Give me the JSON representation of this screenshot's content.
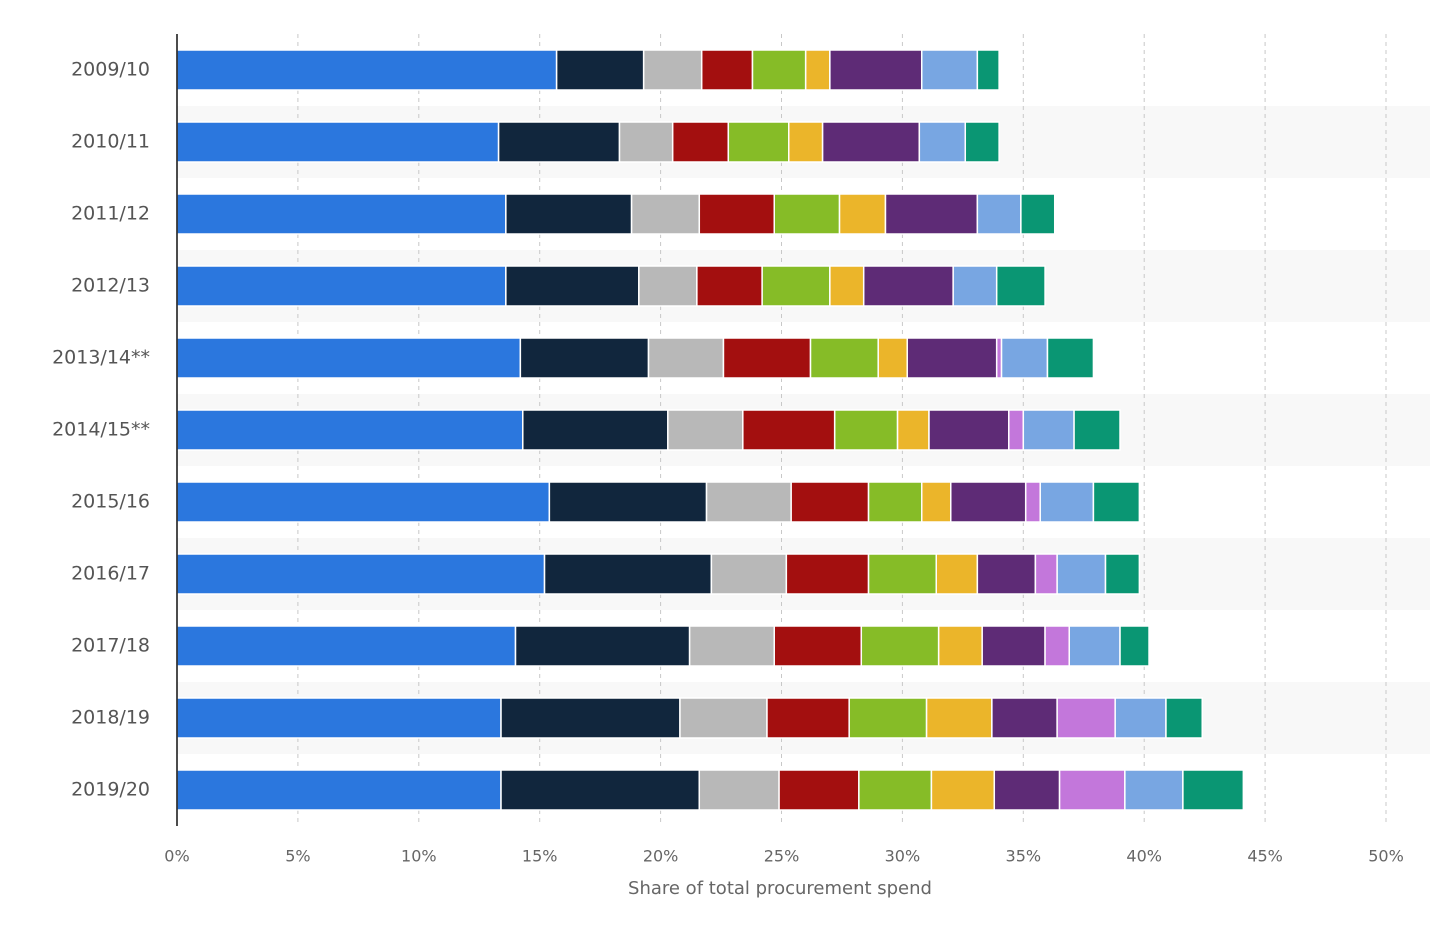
{
  "chart_data": {
    "type": "stacked-bar-horizontal",
    "x_label": "Share of total procurement spend",
    "categories": [
      "2009/10",
      "2010/11",
      "2011/12",
      "2012/13",
      "2013/14**",
      "2014/15**",
      "2015/16",
      "2016/17",
      "2017/18",
      "2018/19",
      "2019/20"
    ],
    "series": [
      {
        "color": "#2b77de",
        "values": [
          15.7,
          13.3,
          13.6,
          13.6,
          14.2,
          14.3,
          15.4,
          15.2,
          14.0,
          13.4,
          13.4
        ]
      },
      {
        "color": "#11263d",
        "values": [
          3.6,
          5.0,
          5.2,
          5.5,
          5.3,
          6.0,
          6.5,
          6.9,
          7.2,
          7.4,
          8.2
        ]
      },
      {
        "color": "#b8b8b8",
        "values": [
          2.4,
          2.2,
          2.8,
          2.4,
          3.1,
          3.1,
          3.5,
          3.1,
          3.5,
          3.6,
          3.3
        ]
      },
      {
        "color": "#a30f0f",
        "values": [
          2.1,
          2.3,
          3.1,
          2.7,
          3.6,
          3.8,
          3.2,
          3.4,
          3.6,
          3.4,
          3.3
        ]
      },
      {
        "color": "#86bc27",
        "values": [
          2.2,
          2.5,
          2.7,
          2.8,
          2.8,
          2.6,
          2.2,
          2.8,
          3.2,
          3.2,
          3.0
        ]
      },
      {
        "color": "#ebb52a",
        "values": [
          1.0,
          1.4,
          1.9,
          1.4,
          1.2,
          1.3,
          1.2,
          1.7,
          1.8,
          2.7,
          2.6
        ]
      },
      {
        "color": "#5e2b76",
        "values": [
          3.8,
          4.0,
          3.8,
          3.7,
          3.7,
          3.3,
          3.1,
          2.4,
          2.6,
          2.7,
          2.7
        ]
      },
      {
        "color": "#c377db",
        "values": [
          0,
          0,
          0,
          0,
          0.2,
          0.6,
          0.6,
          0.9,
          1.0,
          2.4,
          2.7
        ]
      },
      {
        "color": "#78a6e2",
        "values": [
          2.3,
          1.9,
          1.8,
          1.8,
          1.9,
          2.1,
          2.2,
          2.0,
          2.1,
          2.1,
          2.4
        ]
      },
      {
        "color": "#0a9673",
        "values": [
          0.9,
          1.4,
          1.4,
          2.0,
          1.9,
          1.9,
          1.9,
          1.4,
          1.2,
          1.5,
          2.5
        ]
      }
    ],
    "xlim": [
      0,
      50
    ],
    "xticks": [
      {
        "value": 0,
        "label": "0%"
      },
      {
        "value": 5,
        "label": "5%"
      },
      {
        "value": 10,
        "label": "10%"
      },
      {
        "value": 15,
        "label": "15%"
      },
      {
        "value": 20,
        "label": "20%"
      },
      {
        "value": 25,
        "label": "25%"
      },
      {
        "value": 30,
        "label": "30%"
      },
      {
        "value": 35,
        "label": "35%"
      },
      {
        "value": 40,
        "label": "40%"
      },
      {
        "value": 45,
        "label": "45%"
      },
      {
        "value": 50,
        "label": "50%"
      }
    ],
    "grid": true
  }
}
